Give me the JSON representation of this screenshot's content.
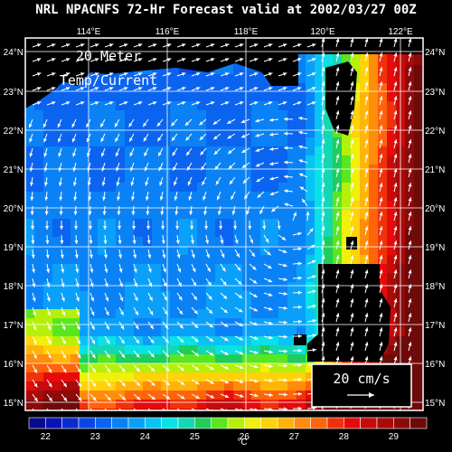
{
  "title": "NRL NPACNFS 72-Hr Forecast valid at 2002/03/27 00Z",
  "map_label": {
    "line1": "20 Meter",
    "line2": "Temp/Current"
  },
  "lon_ticks": [
    "114°E",
    "116°E",
    "118°E",
    "120°E",
    "122°E"
  ],
  "lat_ticks": [
    "24°N",
    "23°N",
    "22°N",
    "21°N",
    "20°N",
    "19°N",
    "18°N",
    "17°N",
    "16°N",
    "15°N"
  ],
  "reference_vector": {
    "label": "20 cm/s"
  },
  "colorbar": {
    "unit": "°C",
    "tick_labels": [
      "22",
      "23",
      "24",
      "25",
      "26",
      "27",
      "28",
      "29"
    ],
    "colors": [
      "#0a0a8c",
      "#0a14b4",
      "#0a2ad2",
      "#0a46e6",
      "#0a64f0",
      "#0a82f5",
      "#0aa0fa",
      "#0ac3f5",
      "#0ae1e6",
      "#14d7b4",
      "#1ecd5a",
      "#5ae61e",
      "#b4f00a",
      "#f0f00a",
      "#ffd20a",
      "#ffb40a",
      "#ff8c0a",
      "#ff640a",
      "#f0320a",
      "#e60a0a",
      "#c80a0a",
      "#aa0a0a",
      "#8c0a0a",
      "#6e0a0a"
    ]
  },
  "colors": {
    "land": "#000000",
    "grid": "#ffffff",
    "vectors": "#ffffff"
  }
}
